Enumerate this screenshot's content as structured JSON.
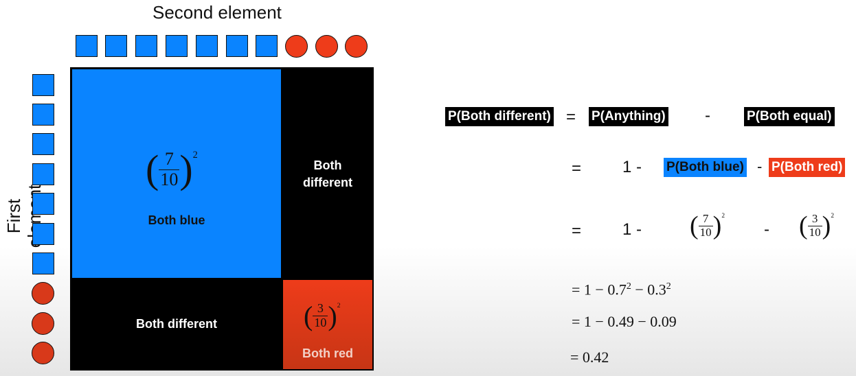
{
  "axis_labels": {
    "top": "Second element",
    "left": "First element"
  },
  "top_row": {
    "blue_count": 7,
    "red_count": 3
  },
  "left_column": {
    "blue_count": 7,
    "red_count": 3
  },
  "cells": {
    "both_blue": {
      "label": "Both blue",
      "numerator": "7",
      "denominator": "10",
      "exponent": "2"
    },
    "both_different_right": {
      "label_line1": "Both",
      "label_line2": "different"
    },
    "both_different_bottom": {
      "label": "Both different"
    },
    "both_red": {
      "label": "Both red",
      "numerator": "3",
      "denominator": "10",
      "exponent": "2"
    }
  },
  "equations": {
    "line1": {
      "lhs": "P(Both different)",
      "eq": "=",
      "term1": "P(Anything)",
      "op": "-",
      "term2": "P(Both equal)"
    },
    "line2": {
      "eq": "=",
      "one": "1 -",
      "term1": "P(Both blue)",
      "op": "-",
      "term2": "P(Both red)"
    },
    "line3": {
      "eq": "=",
      "one": "1 -",
      "f1_num": "7",
      "f1_den": "10",
      "f1_exp": "2",
      "op": "-",
      "f2_num": "3",
      "f2_den": "10",
      "f2_exp": "2"
    },
    "line4": {
      "prefix": "= 1 − 0.7",
      "exp1": "2",
      "mid": " − 0.3",
      "exp2": "2"
    },
    "line5": {
      "text": "= 1 − 0.49 − 0.09"
    },
    "line6": {
      "text": "= 0.42"
    }
  },
  "colors": {
    "blue": "#0a84ff",
    "red": "#ee3c1a",
    "black": "#000000"
  }
}
